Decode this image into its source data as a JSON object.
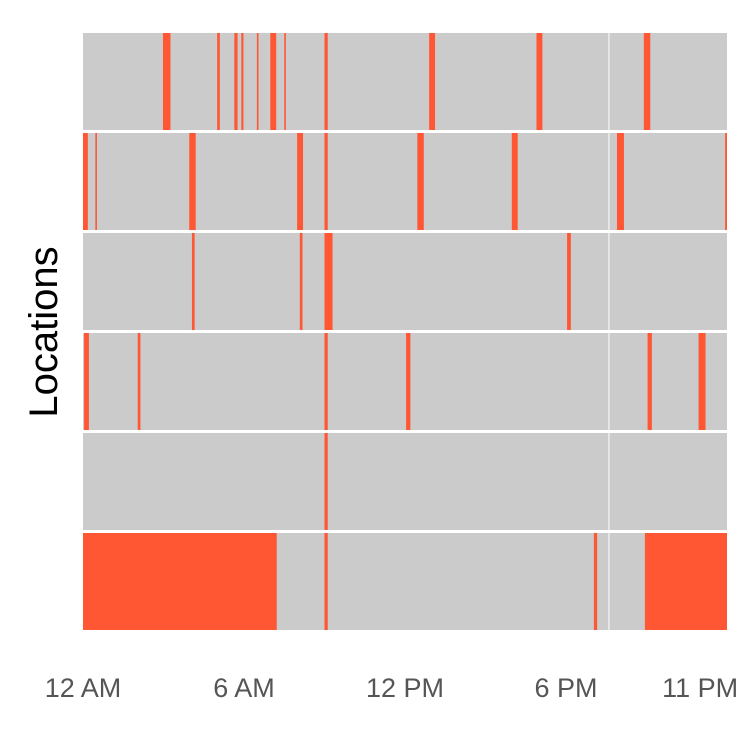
{
  "chart_data": {
    "type": "heatmap",
    "title": "",
    "xlabel": "",
    "ylabel": "Locations",
    "x_unit": "hours since midnight",
    "xlim": [
      0,
      24
    ],
    "x_ticks": [
      {
        "value": 0,
        "label": "12 AM"
      },
      {
        "value": 6,
        "label": "6 AM"
      },
      {
        "value": 12,
        "label": "12 PM"
      },
      {
        "value": 18,
        "label": "6 PM"
      },
      {
        "value": 23,
        "label": "11 PM"
      }
    ],
    "reference_hour": 19.6,
    "rows": [
      {
        "intervals": [
          [
            2.98,
            3.26
          ],
          [
            5.0,
            5.1
          ],
          [
            5.64,
            5.76
          ],
          [
            5.9,
            5.98
          ],
          [
            6.48,
            6.54
          ],
          [
            6.98,
            7.2
          ],
          [
            7.5,
            7.56
          ],
          [
            9.0,
            9.12
          ],
          [
            12.9,
            13.12
          ],
          [
            16.9,
            17.12
          ],
          [
            20.9,
            21.14
          ]
        ]
      },
      {
        "intervals": [
          [
            0.0,
            0.18
          ],
          [
            0.46,
            0.52
          ],
          [
            3.96,
            4.2
          ],
          [
            7.98,
            8.2
          ],
          [
            9.0,
            9.12
          ],
          [
            12.46,
            12.7
          ],
          [
            15.98,
            16.2
          ],
          [
            19.9,
            20.16
          ],
          [
            23.93,
            24.0
          ]
        ]
      },
      {
        "intervals": [
          [
            4.06,
            4.16
          ],
          [
            8.08,
            8.18
          ],
          [
            9.0,
            9.3
          ],
          [
            18.04,
            18.18
          ]
        ]
      },
      {
        "intervals": [
          [
            0.04,
            0.22
          ],
          [
            2.04,
            2.14
          ],
          [
            9.0,
            9.12
          ],
          [
            12.04,
            12.2
          ],
          [
            21.04,
            21.2
          ],
          [
            22.94,
            23.2
          ]
        ]
      },
      {
        "intervals": [
          [
            9.0,
            9.12
          ]
        ]
      },
      {
        "intervals": [
          [
            0.0,
            7.22
          ],
          [
            9.0,
            9.12
          ],
          [
            19.04,
            19.16
          ],
          [
            20.94,
            24.0
          ]
        ]
      }
    ],
    "colors": {
      "active": "#FF5733",
      "background": "#CBCBCB",
      "divider": "#FFFFFF"
    }
  }
}
